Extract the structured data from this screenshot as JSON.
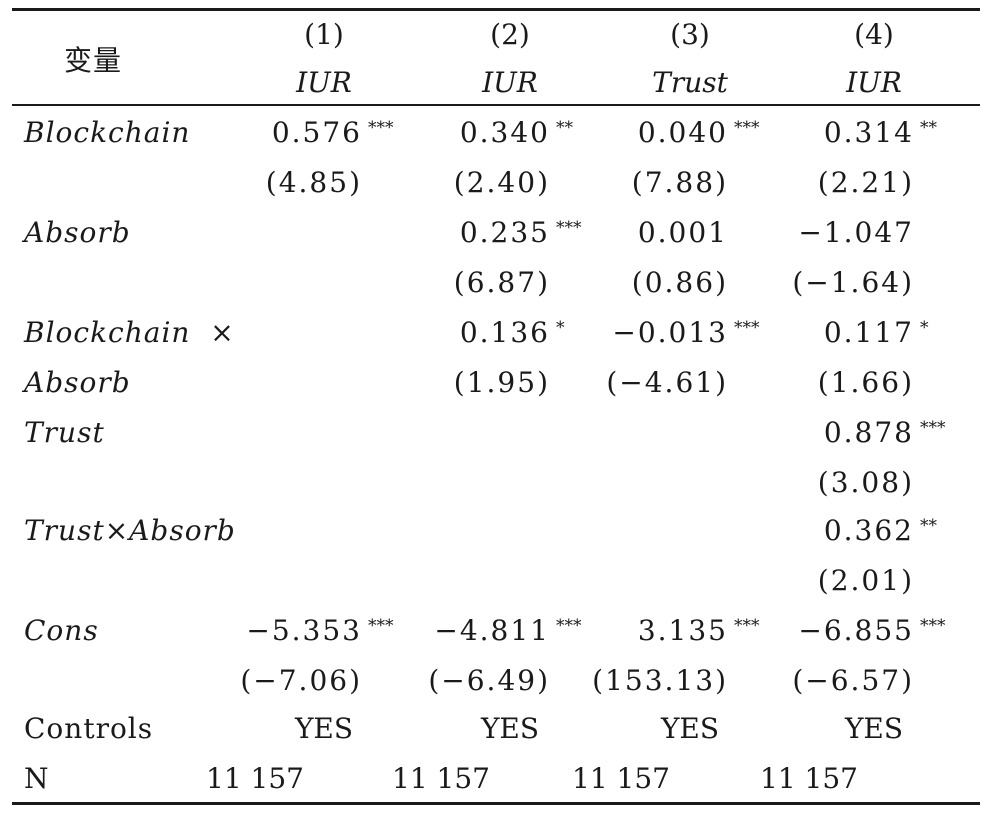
{
  "header": {
    "variable_label": "变量",
    "columns": [
      {
        "index": "(1)",
        "dep": "IUR"
      },
      {
        "index": "(2)",
        "dep": "IUR"
      },
      {
        "index": "(3)",
        "dep": "Trust"
      },
      {
        "index": "(4)",
        "dep": "IUR"
      }
    ]
  },
  "rows": [
    {
      "label": "Blockchain",
      "coef": [
        "0.576",
        "0.340",
        "0.040",
        "0.314"
      ],
      "stars": [
        "***",
        "**",
        "***",
        "**"
      ],
      "t": [
        "(4.85)",
        "(2.40)",
        "(7.88)",
        "(2.21)"
      ]
    },
    {
      "label": "Absorb",
      "coef": [
        "",
        "0.235",
        "0.001",
        "−1.047"
      ],
      "stars": [
        "",
        "***",
        "",
        ""
      ],
      "t": [
        "",
        "(6.87)",
        "(0.86)",
        "(−1.64)"
      ]
    },
    {
      "label_line1": "Blockchain  ×",
      "label_line2": "Absorb",
      "coef": [
        "",
        "0.136",
        "−0.013",
        "0.117"
      ],
      "stars": [
        "",
        "*",
        "***",
        "*"
      ],
      "t": [
        "",
        "(1.95)",
        "(−4.61)",
        "(1.66)"
      ]
    },
    {
      "label": "Trust",
      "coef": [
        "",
        "",
        "",
        "0.878"
      ],
      "stars": [
        "",
        "",
        "",
        "***"
      ],
      "t": [
        "",
        "",
        "",
        "(3.08)"
      ]
    },
    {
      "label": "Trust×Absorb",
      "coef": [
        "",
        "",
        "",
        "0.362"
      ],
      "stars": [
        "",
        "",
        "",
        "**"
      ],
      "t": [
        "",
        "",
        "",
        "(2.01)"
      ]
    },
    {
      "label": "Cons",
      "coef": [
        "−5.353",
        "−4.811",
        "3.135",
        "−6.855"
      ],
      "stars": [
        "***",
        "***",
        "***",
        "***"
      ],
      "t": [
        "(−7.06)",
        "(−6.49)",
        "(153.13)",
        "(−6.57)"
      ]
    }
  ],
  "controls": {
    "label": "Controls",
    "values": [
      "YES",
      "YES",
      "YES",
      "YES"
    ]
  },
  "n": {
    "label": "N",
    "values": [
      "11 157",
      "11 157",
      "11 157",
      "11 157"
    ]
  }
}
